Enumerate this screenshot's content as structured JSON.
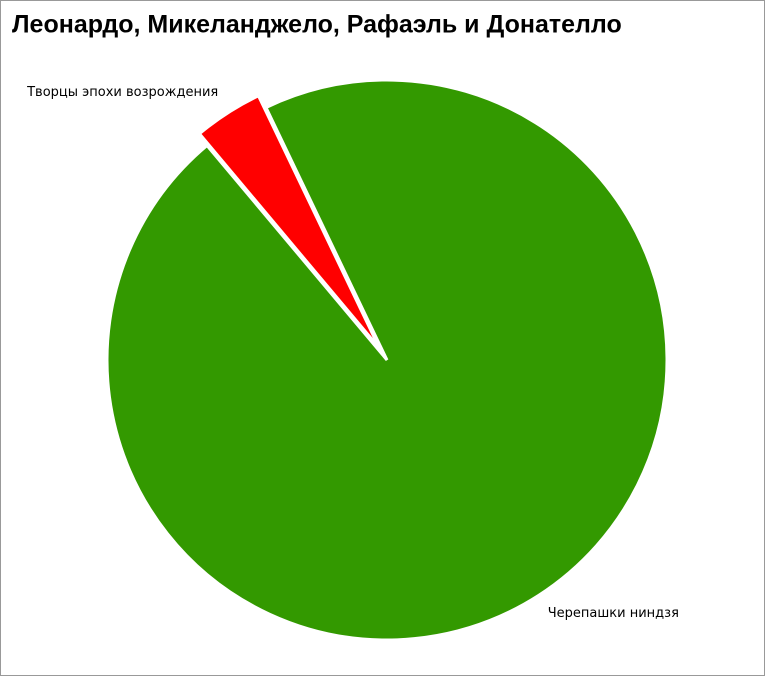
{
  "chart_data": {
    "type": "pie",
    "title": "Леонардо, Микеланджело, Рафаэль и Донателло",
    "categories": [
      "Творцы эпохи возрождения",
      "Черепашки ниндзя"
    ],
    "values": [
      4,
      96
    ],
    "colors": [
      "#ff0000",
      "#339900"
    ]
  }
}
